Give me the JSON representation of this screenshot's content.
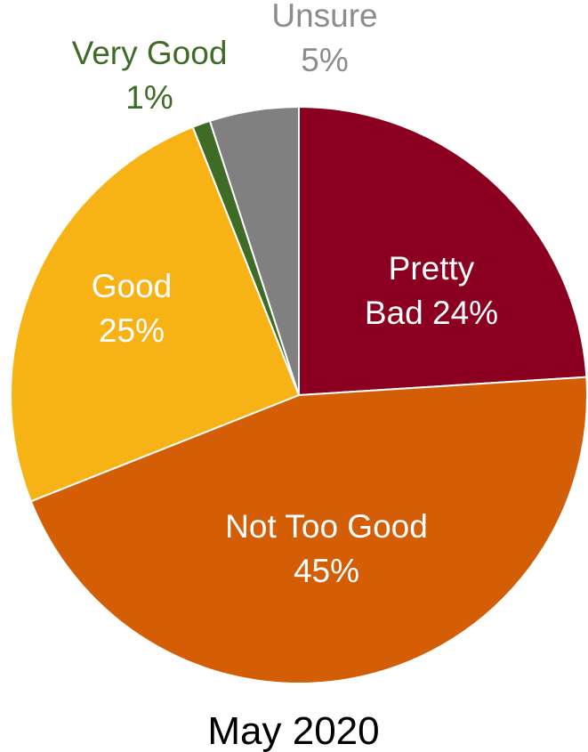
{
  "chart_data": {
    "type": "pie",
    "subtitle": "May 2020",
    "slices": [
      {
        "label_lines": [
          "Pretty",
          "Bad 24%"
        ],
        "value": 24,
        "color": "#8b0020",
        "label_color": "#ffffff"
      },
      {
        "label_lines": [
          "Not Too Good",
          "45%"
        ],
        "value": 45,
        "color": "#d35e06",
        "label_color": "#ffffff"
      },
      {
        "label_lines": [
          "Good",
          "25%"
        ],
        "value": 25,
        "color": "#f7b215",
        "label_color": "#ffffff"
      },
      {
        "label_lines": [
          "Very Good",
          "1%"
        ],
        "value": 1,
        "color": "#3e6b25",
        "label_color": "#3e6b25"
      },
      {
        "label_lines": [
          "Unsure",
          "5%"
        ],
        "value": 5,
        "color": "#808080",
        "label_color": "#8c8c8c"
      }
    ]
  }
}
